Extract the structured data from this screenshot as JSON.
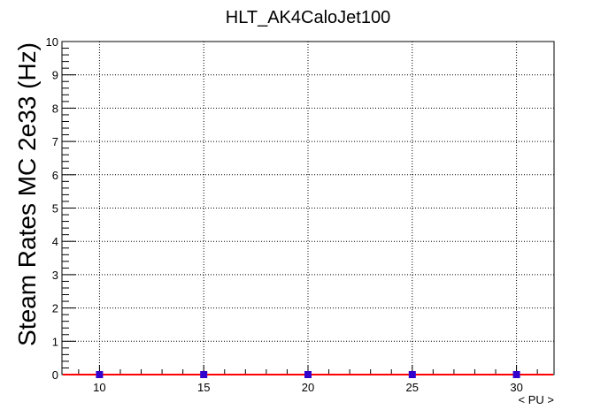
{
  "chart_data": {
    "type": "scatter",
    "title": "HLT_AK4CaloJet100",
    "xlabel": "< PU >",
    "ylabel": "Steam Rates MC 2e33 (Hz)",
    "xlim": [
      8.2,
      31.8
    ],
    "ylim": [
      0,
      10
    ],
    "x_ticks": [
      10,
      15,
      20,
      25,
      30
    ],
    "y_ticks": [
      0,
      1,
      2,
      3,
      4,
      5,
      6,
      7,
      8,
      9,
      10
    ],
    "grid": true,
    "series": [
      {
        "x": [
          10,
          15,
          20,
          25,
          30
        ],
        "y": [
          0,
          0,
          0,
          0,
          0
        ],
        "marker_color": "#3300cc"
      }
    ],
    "fit_line": {
      "y": 0,
      "color": "#ff0000"
    }
  }
}
